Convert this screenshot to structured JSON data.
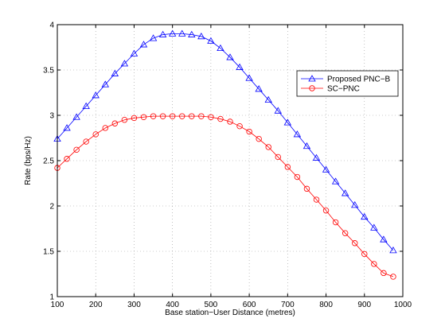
{
  "chart_data": {
    "type": "line",
    "title": "",
    "xlabel": "Base station−User Distance (metres)",
    "ylabel": "Rate (bps/Hz)",
    "xlim": [
      100,
      1000
    ],
    "ylim": [
      1,
      4
    ],
    "xticks": [
      100,
      200,
      300,
      400,
      500,
      600,
      700,
      800,
      900,
      1000
    ],
    "yticks": [
      1,
      1.5,
      2,
      2.5,
      3,
      3.5,
      4
    ],
    "xtick_labels": [
      "100",
      "200",
      "300",
      "400",
      "500",
      "600",
      "700",
      "800",
      "900",
      "1000"
    ],
    "ytick_labels": [
      "1",
      "1.5",
      "2",
      "2.5",
      "3",
      "3.5",
      "4"
    ],
    "grid": true,
    "grid_style": "dotted",
    "legend_position": "right-middle",
    "x": [
      100,
      125,
      150,
      175,
      200,
      225,
      250,
      275,
      300,
      325,
      350,
      375,
      400,
      425,
      450,
      475,
      500,
      525,
      550,
      575,
      600,
      625,
      650,
      675,
      700,
      725,
      750,
      775,
      800,
      825,
      850,
      875,
      900,
      925,
      950,
      975
    ],
    "series": [
      {
        "name": "Proposed PNC−B",
        "color": "#0000ff",
        "marker": "triangle",
        "values": [
          2.74,
          2.86,
          2.98,
          3.1,
          3.22,
          3.34,
          3.46,
          3.57,
          3.68,
          3.78,
          3.85,
          3.89,
          3.9,
          3.9,
          3.89,
          3.87,
          3.82,
          3.74,
          3.64,
          3.53,
          3.41,
          3.29,
          3.17,
          3.05,
          2.92,
          2.79,
          2.66,
          2.53,
          2.4,
          2.27,
          2.14,
          2.01,
          1.88,
          1.76,
          1.63,
          1.51
        ]
      },
      {
        "name": "SC−PNC",
        "color": "#ff0000",
        "marker": "circle",
        "values": [
          2.42,
          2.52,
          2.62,
          2.71,
          2.79,
          2.86,
          2.91,
          2.95,
          2.97,
          2.98,
          2.99,
          2.99,
          2.99,
          2.99,
          2.99,
          2.99,
          2.98,
          2.96,
          2.93,
          2.88,
          2.82,
          2.74,
          2.65,
          2.54,
          2.43,
          2.32,
          2.19,
          2.07,
          1.95,
          1.82,
          1.7,
          1.59,
          1.47,
          1.36,
          1.26,
          1.22
        ]
      }
    ]
  }
}
